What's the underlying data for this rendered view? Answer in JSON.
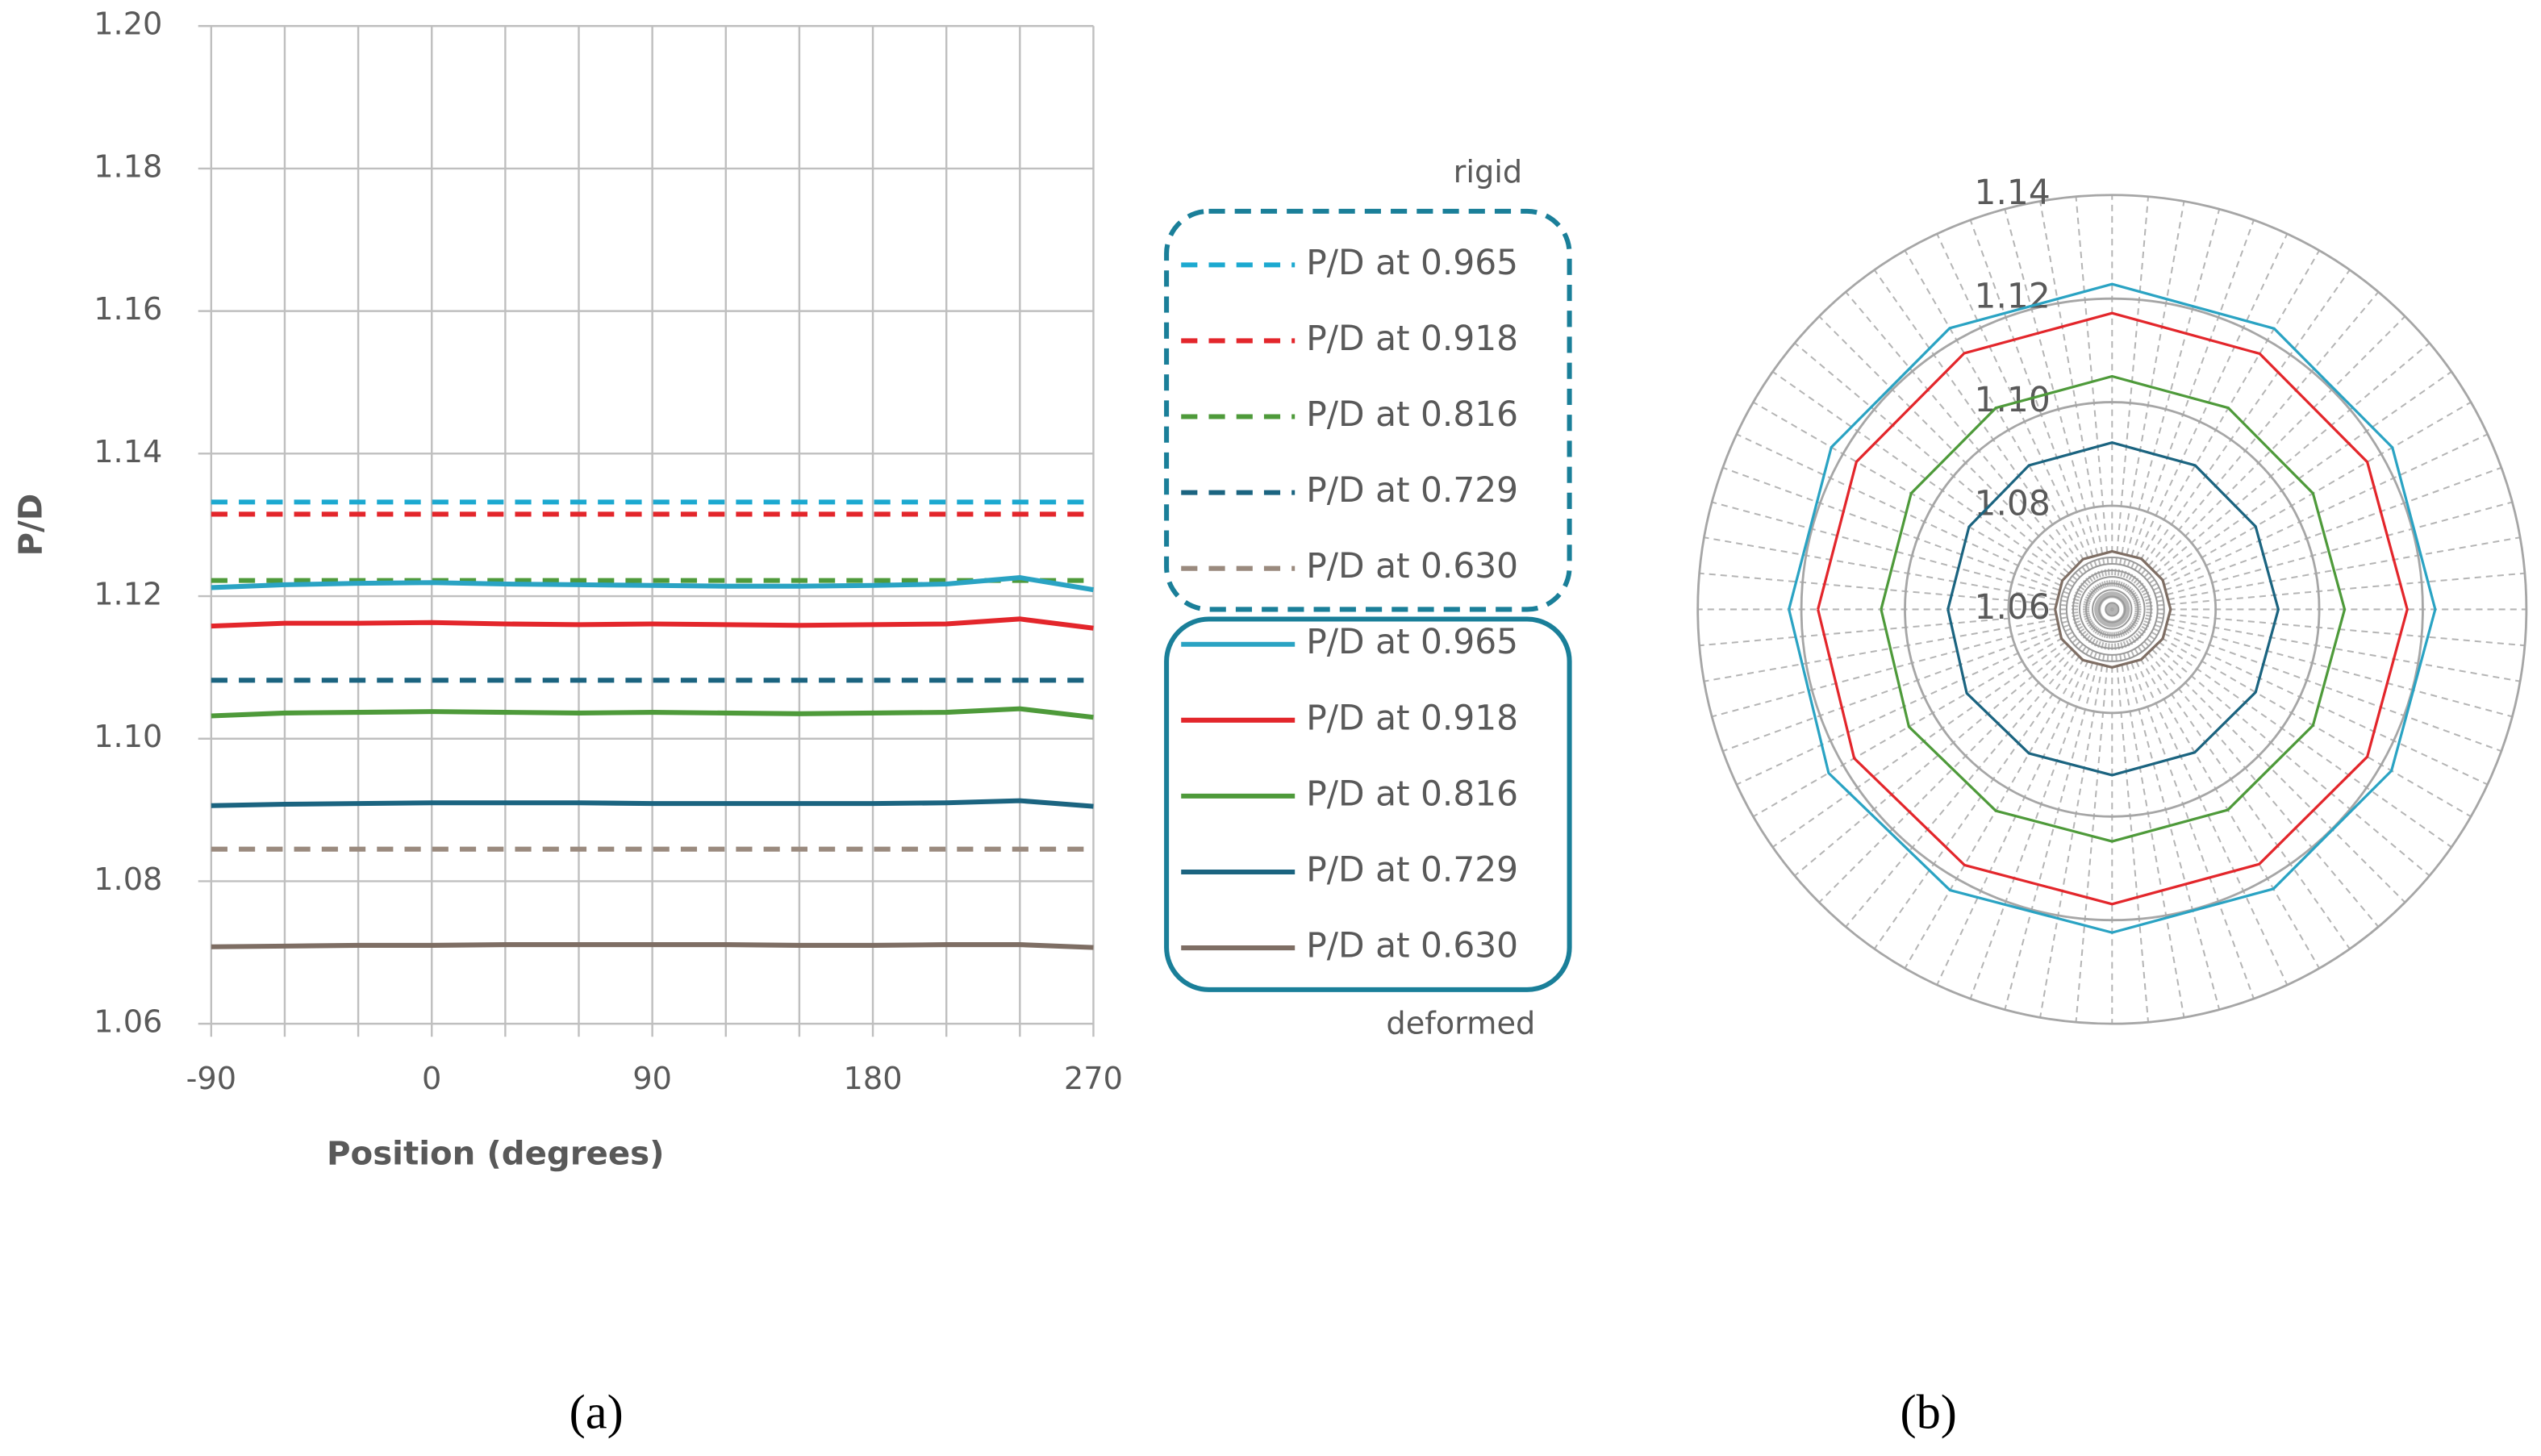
{
  "chart_data": [
    {
      "type": "line",
      "caption": "(a)",
      "xlabel": "Position (degrees)",
      "ylabel": "P/D",
      "xlim": [
        -90,
        270
      ],
      "xticks": [
        -90,
        0,
        90,
        180,
        270
      ],
      "x_gridlines": [
        -90,
        -60,
        -30,
        0,
        30,
        60,
        90,
        120,
        150,
        180,
        210,
        240,
        270
      ],
      "ylim": [
        1.06,
        1.2
      ],
      "yticks": [
        {
          "value": 1.06,
          "label": "1.06"
        },
        {
          "value": 1.08,
          "label": "1.08"
        },
        {
          "value": 1.1,
          "label": "1.10"
        },
        {
          "value": 1.12,
          "label": "1.12"
        },
        {
          "value": 1.14,
          "label": "1.14"
        },
        {
          "value": 1.16,
          "label": "1.16"
        },
        {
          "value": 1.18,
          "label": "1.18"
        },
        {
          "value": 1.2,
          "label": "1.20"
        }
      ],
      "grid": true,
      "legend_titles": {
        "dashed": "rigid",
        "solid": "deformed"
      },
      "x": [
        -90,
        -60,
        -30,
        0,
        30,
        60,
        90,
        120,
        150,
        180,
        210,
        240,
        270
      ],
      "series": [
        {
          "name": "P/D at 0.965",
          "color": "#1ca9d0",
          "style": "dashed",
          "values": [
            1.1332,
            1.1332,
            1.1332,
            1.1332,
            1.1332,
            1.1332,
            1.1332,
            1.1332,
            1.1332,
            1.1332,
            1.1332,
            1.1332,
            1.1332
          ]
        },
        {
          "name": "P/D at 0.918",
          "color": "#e3262b",
          "style": "dashed",
          "values": [
            1.1315,
            1.1315,
            1.1315,
            1.1315,
            1.1315,
            1.1315,
            1.1315,
            1.1315,
            1.1315,
            1.1315,
            1.1315,
            1.1315,
            1.1315
          ]
        },
        {
          "name": "P/D at 0.816",
          "color": "#4e9a3a",
          "style": "dashed",
          "values": [
            1.1222,
            1.1222,
            1.1222,
            1.1222,
            1.1222,
            1.1222,
            1.1222,
            1.1222,
            1.1222,
            1.1222,
            1.1222,
            1.1222,
            1.1222
          ]
        },
        {
          "name": "P/D at 0.729",
          "color": "#1b6480",
          "style": "dashed",
          "values": [
            1.1082,
            1.1082,
            1.1082,
            1.1082,
            1.1082,
            1.1082,
            1.1082,
            1.1082,
            1.1082,
            1.1082,
            1.1082,
            1.1082,
            1.1082
          ]
        },
        {
          "name": "P/D at 0.630",
          "color": "#9a8a7e",
          "style": "dashed",
          "values": [
            1.0845,
            1.0845,
            1.0845,
            1.0845,
            1.0845,
            1.0845,
            1.0845,
            1.0845,
            1.0845,
            1.0845,
            1.0845,
            1.0845,
            1.0845
          ]
        },
        {
          "name": "P/D at 0.965",
          "color": "#2aa3c3",
          "style": "solid",
          "values": [
            1.1212,
            1.1216,
            1.1218,
            1.1219,
            1.1217,
            1.1216,
            1.1215,
            1.1214,
            1.1214,
            1.1215,
            1.1217,
            1.1226,
            1.1209
          ]
        },
        {
          "name": "P/D at 0.918",
          "color": "#e3262b",
          "style": "solid",
          "values": [
            1.1158,
            1.1162,
            1.1162,
            1.1163,
            1.1161,
            1.116,
            1.1161,
            1.116,
            1.1159,
            1.116,
            1.1161,
            1.1168,
            1.1155
          ]
        },
        {
          "name": "P/D at 0.816",
          "color": "#4e9a3a",
          "style": "solid",
          "values": [
            1.1032,
            1.1036,
            1.1037,
            1.1038,
            1.1037,
            1.1036,
            1.1037,
            1.1036,
            1.1035,
            1.1036,
            1.1037,
            1.1042,
            1.103
          ]
        },
        {
          "name": "P/D at 0.729",
          "color": "#1b6480",
          "style": "solid",
          "values": [
            1.0906,
            1.0908,
            1.0909,
            1.091,
            1.091,
            1.091,
            1.0909,
            1.0909,
            1.0909,
            1.0909,
            1.091,
            1.0913,
            1.0905
          ]
        },
        {
          "name": "P/D at 0.630",
          "color": "#7e6e64",
          "style": "solid",
          "values": [
            1.0708,
            1.0709,
            1.071,
            1.071,
            1.0711,
            1.0711,
            1.0711,
            1.0711,
            1.071,
            1.071,
            1.0711,
            1.0711,
            1.0707
          ]
        }
      ]
    },
    {
      "type": "polar",
      "caption": "(b)",
      "rlim": [
        1.06,
        1.14
      ],
      "rticks": [
        {
          "value": 1.06,
          "label": "1.06"
        },
        {
          "value": 1.08,
          "label": "1.08"
        },
        {
          "value": 1.1,
          "label": "1.10"
        },
        {
          "value": 1.12,
          "label": "1.12"
        },
        {
          "value": 1.14,
          "label": "1.14"
        }
      ],
      "angular_grid_step": 5,
      "x": [
        -90,
        -60,
        -30,
        0,
        30,
        60,
        90,
        120,
        150,
        180,
        210,
        240,
        270
      ],
      "series": [
        {
          "name": "P/D at 0.965",
          "color": "#2aa3c3",
          "values": [
            1.1224,
            1.1226,
            1.1227,
            1.1228,
            1.1226,
            1.1225,
            1.1224,
            1.1223,
            1.1223,
            1.1224,
            1.1226,
            1.1232,
            1.1224
          ]
        },
        {
          "name": "P/D at 0.918",
          "color": "#e3262b",
          "values": [
            1.1168,
            1.117,
            1.1171,
            1.1172,
            1.117,
            1.1169,
            1.117,
            1.1169,
            1.1168,
            1.1169,
            1.117,
            1.1175,
            1.1168
          ]
        },
        {
          "name": "P/D at 0.816",
          "color": "#4e9a3a",
          "values": [
            1.1046,
            1.1048,
            1.1049,
            1.105,
            1.1049,
            1.1048,
            1.1049,
            1.1048,
            1.1047,
            1.1048,
            1.1049,
            1.1053,
            1.1046
          ]
        },
        {
          "name": "P/D at 0.729",
          "color": "#1b6480",
          "values": [
            1.0917,
            1.0919,
            1.0921,
            1.0922,
            1.0921,
            1.092,
            1.0921,
            1.092,
            1.0919,
            1.092,
            1.0921,
            1.0924,
            1.0917
          ]
        },
        {
          "name": "P/D at 0.630",
          "color": "#7e6e64",
          "values": [
            1.071,
            1.0711,
            1.0712,
            1.0712,
            1.0713,
            1.0713,
            1.0713,
            1.0713,
            1.0712,
            1.0712,
            1.0713,
            1.0713,
            1.071
          ]
        }
      ]
    }
  ]
}
